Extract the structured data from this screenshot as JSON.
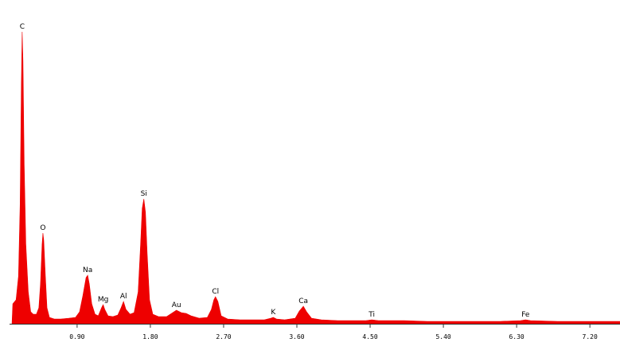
{
  "chart_data": {
    "type": "area",
    "color": "#ee0000",
    "x": [
      0.1,
      0.11,
      0.15,
      0.18,
      0.2,
      0.215,
      0.225,
      0.235,
      0.25,
      0.27,
      0.3,
      0.33,
      0.36,
      0.4,
      0.43,
      0.45,
      0.47,
      0.48,
      0.49,
      0.51,
      0.53,
      0.56,
      0.62,
      0.7,
      0.8,
      0.88,
      0.93,
      0.97,
      1.01,
      1.03,
      1.05,
      1.08,
      1.12,
      1.16,
      1.2,
      1.22,
      1.24,
      1.28,
      1.34,
      1.4,
      1.44,
      1.47,
      1.5,
      1.55,
      1.6,
      1.65,
      1.68,
      1.7,
      1.72,
      1.74,
      1.76,
      1.79,
      1.83,
      1.9,
      2.0,
      2.06,
      2.12,
      2.18,
      2.24,
      2.3,
      2.4,
      2.5,
      2.55,
      2.58,
      2.6,
      2.63,
      2.67,
      2.75,
      2.9,
      3.05,
      3.2,
      3.28,
      3.31,
      3.35,
      3.45,
      3.58,
      3.63,
      3.68,
      3.72,
      3.78,
      3.9,
      4.1,
      4.3,
      4.45,
      4.52,
      4.6,
      4.9,
      5.2,
      5.5,
      5.8,
      6.1,
      6.35,
      6.41,
      6.47,
      6.8,
      7.2,
      7.57
    ],
    "values": [
      0,
      25,
      30,
      60,
      150,
      300,
      367,
      330,
      200,
      100,
      40,
      15,
      12,
      12,
      20,
      50,
      100,
      114,
      105,
      60,
      20,
      8,
      6,
      6,
      7,
      8,
      15,
      35,
      58,
      61,
      50,
      25,
      12,
      10,
      20,
      24,
      18,
      10,
      9,
      11,
      20,
      28,
      18,
      12,
      14,
      40,
      100,
      145,
      157,
      140,
      90,
      30,
      12,
      9,
      9,
      13,
      17,
      14,
      13,
      10,
      7,
      8,
      18,
      30,
      34,
      28,
      10,
      6,
      5,
      5,
      5,
      7,
      8,
      6,
      5,
      7,
      16,
      22,
      15,
      7,
      5,
      4,
      4,
      4,
      5,
      4,
      4,
      3,
      3,
      3,
      3,
      4,
      5,
      4,
      3,
      3,
      3
    ],
    "annotations": [
      {
        "text": "C",
        "x": 0.225
      },
      {
        "text": "O",
        "x": 0.48
      },
      {
        "text": "Na",
        "x": 1.03
      },
      {
        "text": "Mg",
        "x": 1.22
      },
      {
        "text": "Al",
        "x": 1.47
      },
      {
        "text": "Si",
        "x": 1.72
      },
      {
        "text": "Au",
        "x": 2.12
      },
      {
        "text": "Cl",
        "x": 2.6
      },
      {
        "text": "K",
        "x": 3.31
      },
      {
        "text": "Ca",
        "x": 3.68
      },
      {
        "text": "Ti",
        "x": 4.52
      },
      {
        "text": "Fe",
        "x": 6.41
      }
    ],
    "xlim": [
      0.07,
      7.57
    ],
    "ylim": [
      0,
      380
    ],
    "xticks": [
      {
        "value": 0.9,
        "label": "0.90"
      },
      {
        "value": 1.8,
        "label": "1.80"
      },
      {
        "value": 2.7,
        "label": "2.70"
      },
      {
        "value": 3.6,
        "label": "3.60"
      },
      {
        "value": 4.5,
        "label": "4.50"
      },
      {
        "value": 5.4,
        "label": "5.40"
      },
      {
        "value": 6.3,
        "label": "6.30"
      },
      {
        "value": 7.2,
        "label": "7.20"
      }
    ]
  }
}
